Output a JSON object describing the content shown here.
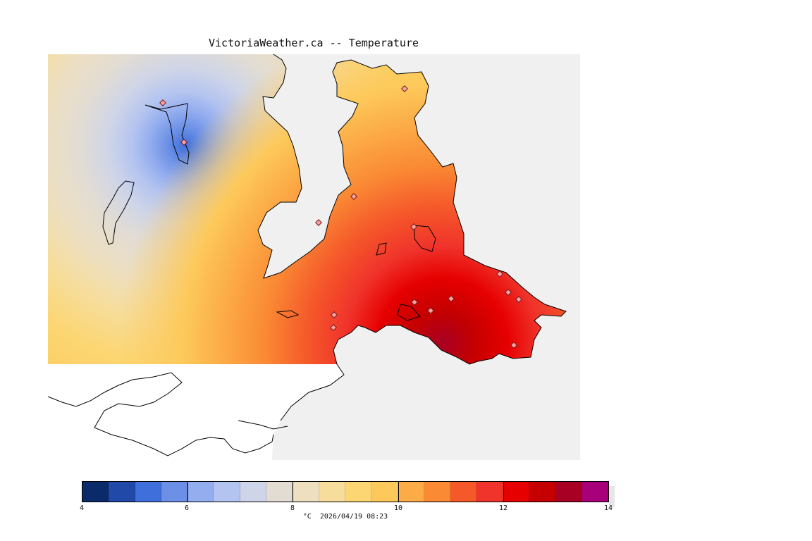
{
  "map": {
    "title": "VictoriaWeather.ca -- Temperature",
    "variable": "Temperature",
    "land_color": "#f0f0f0",
    "water_color": "#ffffff",
    "coast_color": "#000000",
    "station_marker_color": "#c05050"
  },
  "legend": {
    "min": 4,
    "max": 14,
    "step": 0.5,
    "ticks": [
      "4",
      "6",
      "8",
      "10",
      "12",
      "14"
    ],
    "units_timestamp": "°C  2026/04/19 08:23",
    "colors": [
      "#0b2a6a",
      "#2149a8",
      "#3f6fdb",
      "#6b90e6",
      "#93adef",
      "#b4c4f0",
      "#cfd5e8",
      "#e2dcd3",
      "#eddfc0",
      "#f6dd9c",
      "#fcd672",
      "#fdc95a",
      "#fcab47",
      "#fa8a34",
      "#f5592a",
      "#f0332b",
      "#e60000",
      "#c50000",
      "#a80024",
      "#a8007a"
    ]
  }
}
